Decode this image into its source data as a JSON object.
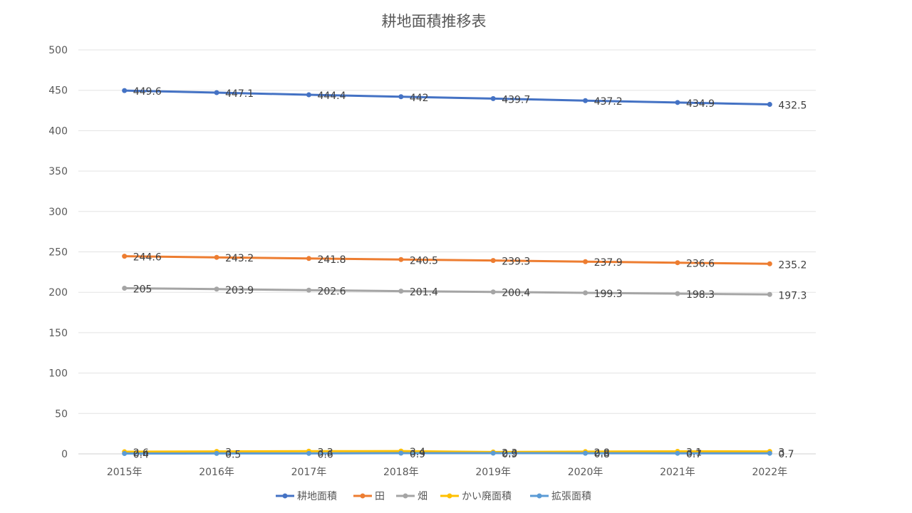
{
  "chart_data": {
    "type": "line",
    "title": "耕地面積推移表",
    "categories": [
      "2015年",
      "2016年",
      "2017年",
      "2018年",
      "2019年",
      "2020年",
      "2021年",
      "2022年"
    ],
    "ylim": [
      0,
      500
    ],
    "yticks": [
      0,
      50,
      100,
      150,
      200,
      250,
      300,
      350,
      400,
      450,
      500
    ],
    "grid": true,
    "legend_position": "bottom",
    "series": [
      {
        "name": "耕地面積",
        "color": "#4472C4",
        "values": [
          449.6,
          447.1,
          444.4,
          442,
          439.7,
          437.2,
          434.9,
          432.5
        ],
        "labels": [
          "449.6",
          "447.1",
          "444.4",
          "442",
          "439.7",
          "437.2",
          "434.9",
          "432.5"
        ]
      },
      {
        "name": "田",
        "color": "#ED7D31",
        "values": [
          244.6,
          243.2,
          241.8,
          240.5,
          239.3,
          237.9,
          236.6,
          235.2
        ],
        "labels": [
          "244.6",
          "243.2",
          "241.8",
          "240.5",
          "239.3",
          "237.9",
          "236.6",
          "235.2"
        ]
      },
      {
        "name": "畑",
        "color": "#A5A5A5",
        "values": [
          205,
          203.9,
          202.6,
          201.4,
          200.4,
          199.3,
          198.3,
          197.3
        ],
        "labels": [
          "205",
          "203.9",
          "202.6",
          "201.4",
          "200.4",
          "199.3",
          "198.3",
          "197.3"
        ]
      },
      {
        "name": "かい廃面積",
        "color": "#FFC000",
        "values": [
          2.6,
          3,
          3.3,
          3.4,
          2.3,
          2.8,
          3.1,
          3
        ],
        "labels": [
          "2.6",
          "3",
          "3.3",
          "3.4",
          "2.3",
          "2.8",
          "3.1",
          "3"
        ]
      },
      {
        "name": "拡張面積",
        "color": "#5B9BD5",
        "values": [
          0.4,
          0.5,
          0.6,
          0.9,
          0.9,
          0.8,
          0.7,
          0.7
        ],
        "labels": [
          "0.4",
          "0.5",
          "0.6",
          "0.9",
          "0.9",
          "0.8",
          "0.7",
          "0.7"
        ]
      }
    ]
  }
}
